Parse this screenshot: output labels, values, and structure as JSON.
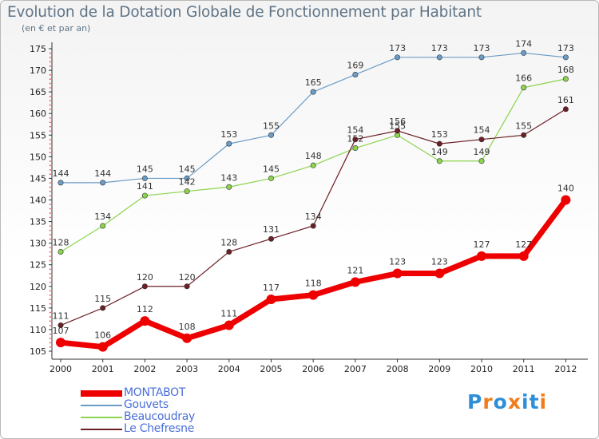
{
  "title": "Evolution de la Dotation Globale de Fonctionnement par Habitant",
  "subtitle": "(en € et par an)",
  "logo": {
    "letters": [
      "P",
      "r",
      "o",
      "x",
      "i",
      "t",
      "i"
    ],
    "colors": [
      "#2e8fd8",
      "#f07c1c",
      "#2e8fd8",
      "#f07c1c",
      "#2e8fd8",
      "#2e8fd8",
      "#f07c1c"
    ]
  },
  "chart_data": {
    "type": "line",
    "x": [
      "2000",
      "2001",
      "2002",
      "2003",
      "2004",
      "2005",
      "2006",
      "2007",
      "2008",
      "2009",
      "2010",
      "2011",
      "2012"
    ],
    "ylim": [
      105,
      175
    ],
    "yticks": [
      105,
      110,
      115,
      120,
      125,
      130,
      135,
      140,
      145,
      150,
      155,
      160,
      165,
      170,
      175
    ],
    "grid": false,
    "legend_position": "bottom-left",
    "series": [
      {
        "name": "MONTABOT",
        "color": "#ee0000",
        "values": [
          107,
          106,
          112,
          108,
          111,
          117,
          118,
          121,
          123,
          123,
          127,
          127,
          140
        ]
      },
      {
        "name": "Gouvets",
        "color": "#6b9cc6",
        "values": [
          144,
          144,
          145,
          145,
          153,
          155,
          165,
          169,
          173,
          173,
          173,
          174,
          173
        ]
      },
      {
        "name": "Beaucoudray",
        "color": "#8cd44e",
        "values": [
          128,
          134,
          141,
          142,
          143,
          145,
          148,
          152,
          155,
          149,
          149,
          166,
          168
        ]
      },
      {
        "name": "Le Chefresne",
        "color": "#6b1f26",
        "values": [
          111,
          115,
          120,
          120,
          128,
          131,
          134,
          154,
          156,
          153,
          154,
          155,
          161
        ]
      }
    ]
  }
}
